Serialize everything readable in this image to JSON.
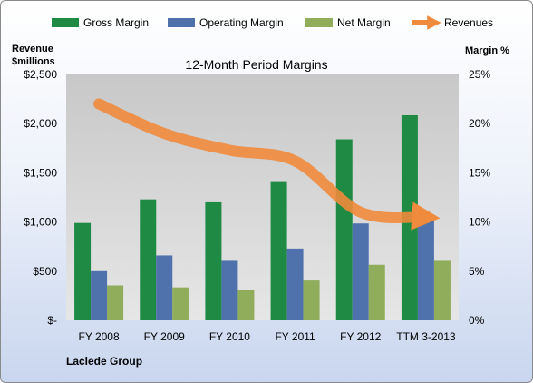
{
  "colors": {
    "gross": "#1f8a44",
    "operating": "#4f72ad",
    "net": "#8fad5b",
    "revenue": "#f08a3c",
    "plot_bg": "#d9d9d9"
  },
  "left_axis_title": [
    "Revenue",
    "$millions"
  ],
  "right_axis_title": "Margin %",
  "company": "Laclede Group",
  "chart_data": {
    "type": "bar",
    "title": "12-Month Period Margins",
    "categories": [
      "FY 2008",
      "FY 2009",
      "FY 2010",
      "FY 2011",
      "FY 2012",
      "TTM 3-2013"
    ],
    "series": [
      {
        "name": "Gross Margin",
        "axis": "left",
        "values": [
          990,
          1230,
          1200,
          1415,
          1840,
          2085
        ]
      },
      {
        "name": "Operating Margin",
        "axis": "left",
        "values": [
          500,
          660,
          605,
          730,
          985,
          1035
        ]
      },
      {
        "name": "Net Margin",
        "axis": "left",
        "values": [
          355,
          335,
          310,
          405,
          565,
          605
        ]
      },
      {
        "name": "Revenues",
        "axis": "right",
        "type": "line",
        "unit": "%",
        "values": [
          22.0,
          19.0,
          17.3,
          16.2,
          11.0,
          10.5
        ]
      }
    ],
    "left_axis": {
      "ylim": [
        0,
        2500
      ],
      "ticks": [
        "$-",
        "$500",
        "$1,000",
        "$1,500",
        "$2,000",
        "$2,500"
      ]
    },
    "right_axis": {
      "ylim": [
        0,
        25
      ],
      "ticks": [
        "0%",
        "5%",
        "10%",
        "15%",
        "20%",
        "25%"
      ]
    },
    "grid": false,
    "legend_position": "top"
  }
}
